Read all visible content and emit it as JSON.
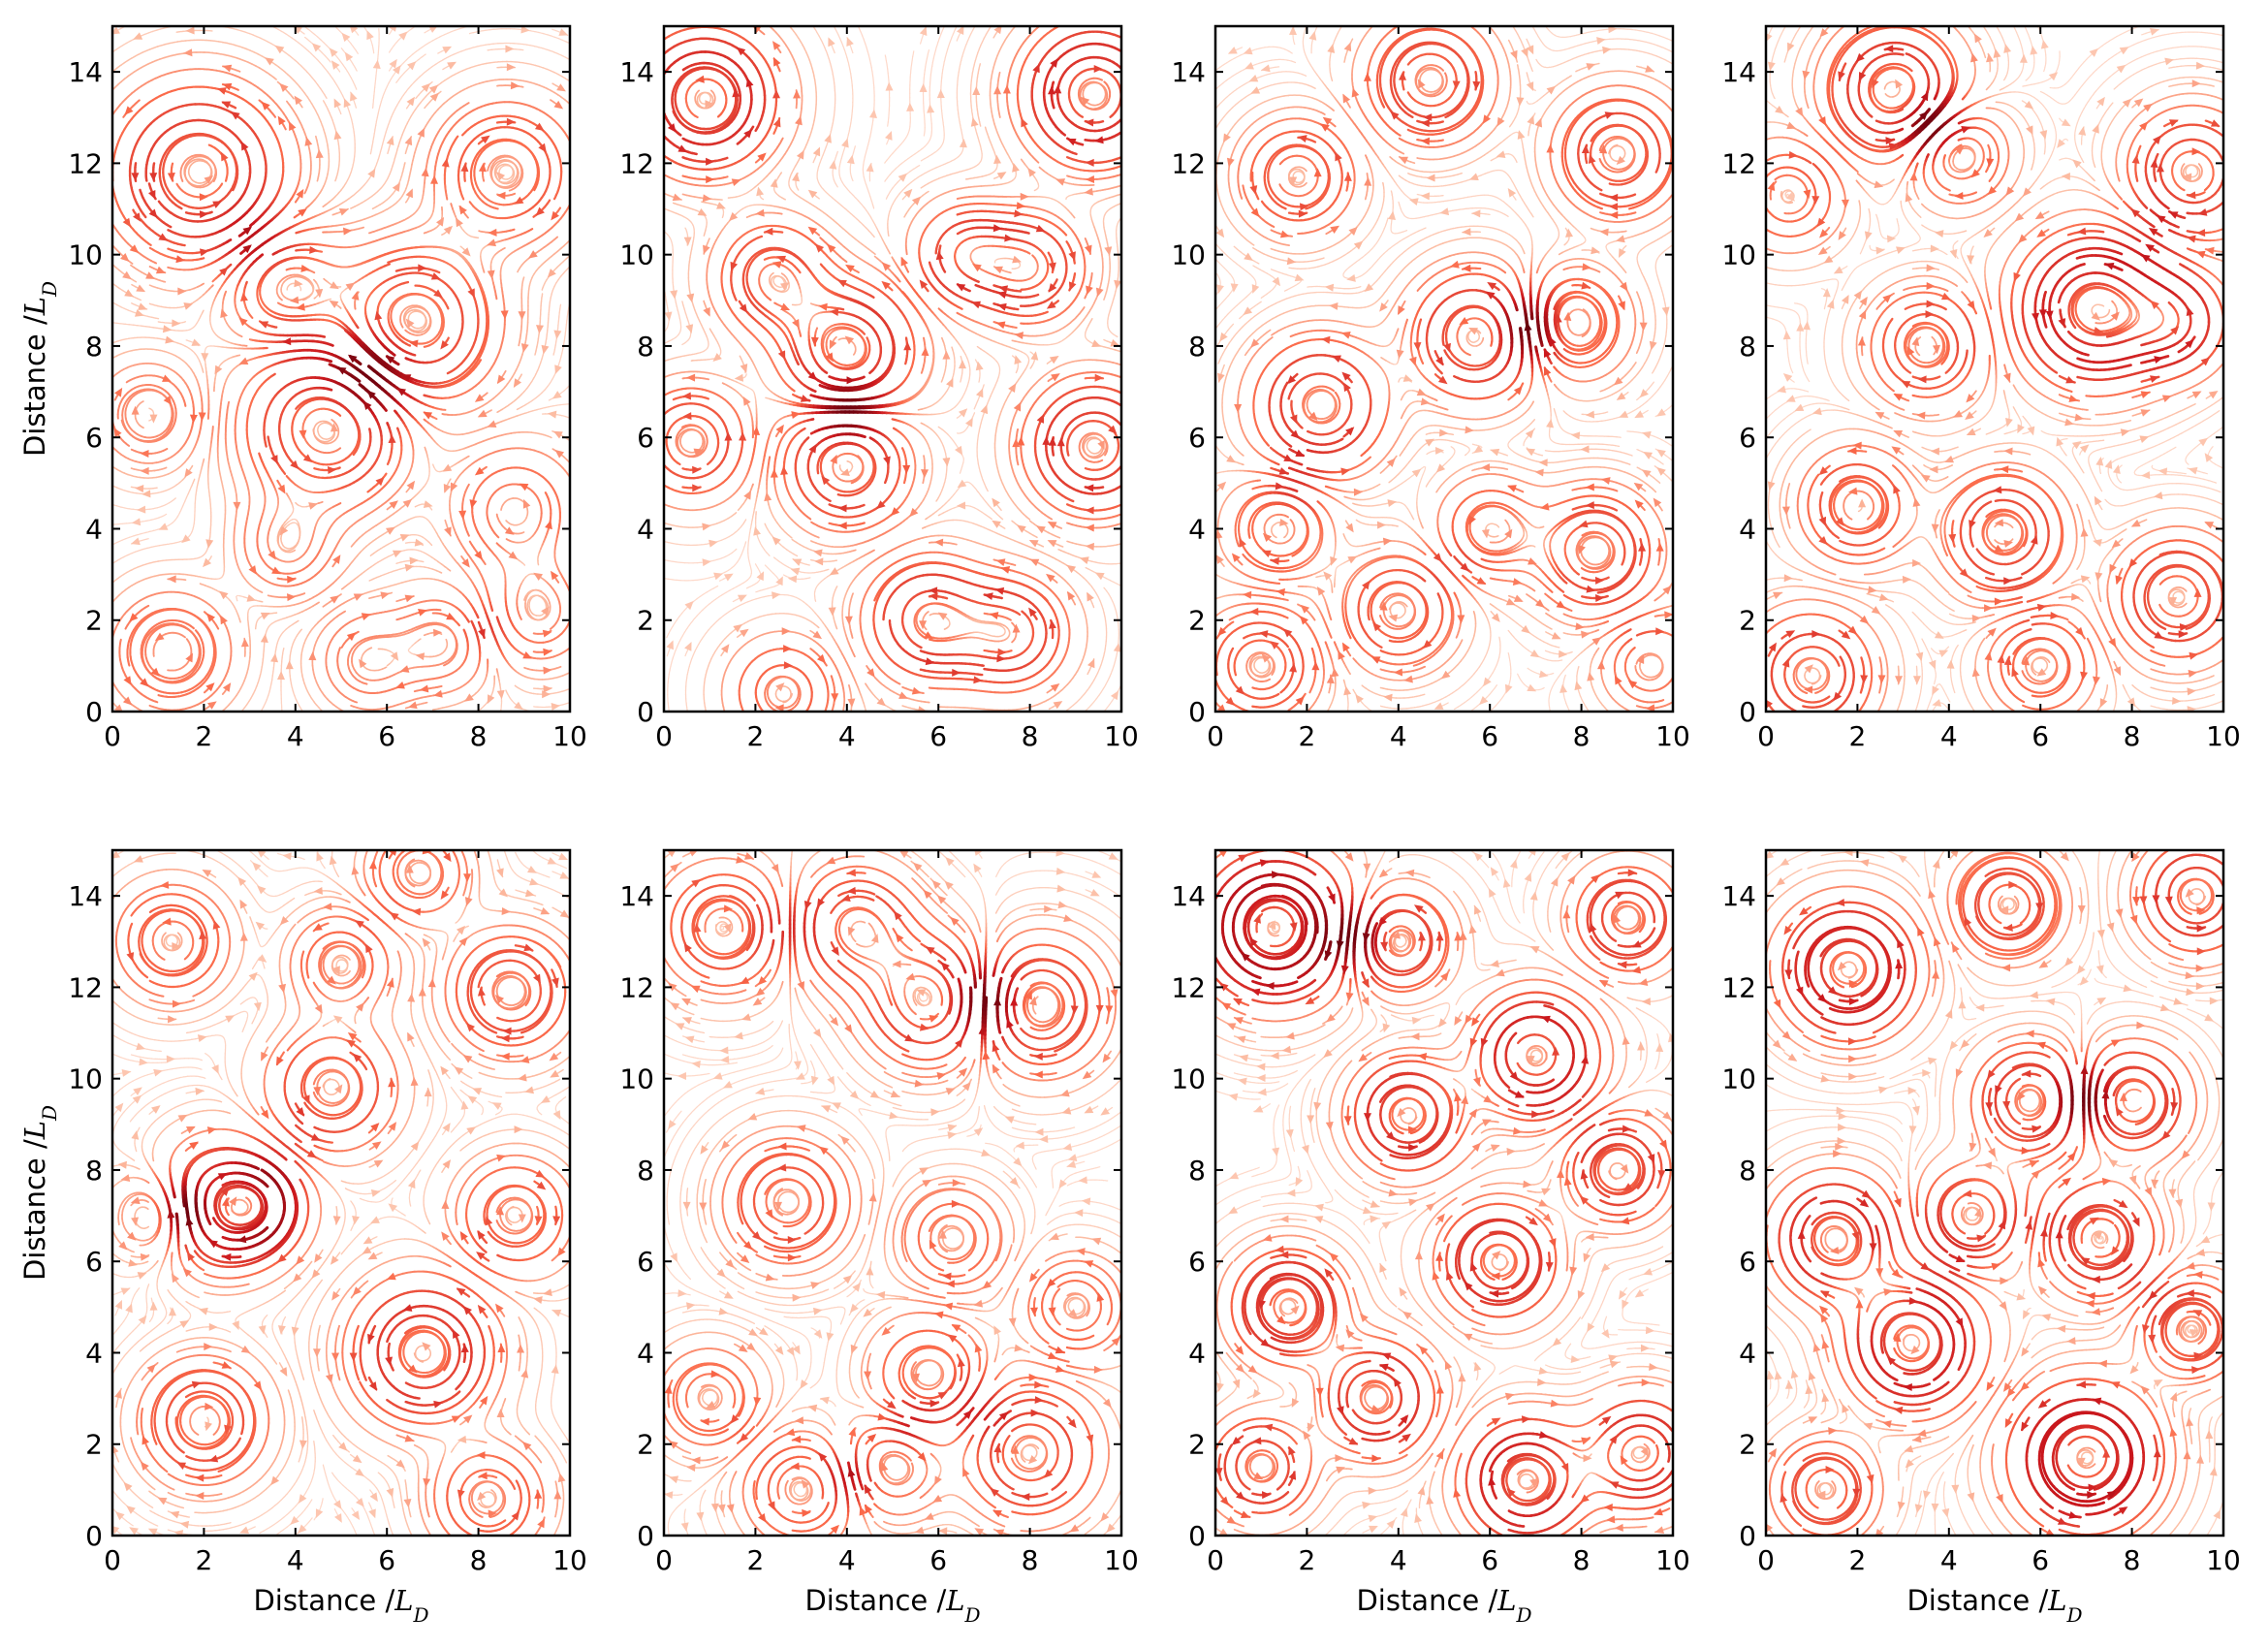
{
  "chart_data": [
    {
      "type": "streamplot",
      "panel": 1,
      "xlim": [
        0,
        10
      ],
      "ylim": [
        0,
        15
      ],
      "xticks": [
        0,
        2,
        4,
        6,
        8,
        10
      ],
      "yticks": [
        0,
        2,
        4,
        6,
        8,
        10,
        12,
        14
      ],
      "xlabel": "",
      "ylabel": "Distance /L_D",
      "colormap": "Reds",
      "vortices": [
        [
          1.9,
          11.8,
          1.7,
          1
        ],
        [
          6.6,
          8.5,
          1.6,
          -1
        ],
        [
          4.7,
          6.2,
          1.6,
          1
        ],
        [
          8.6,
          11.8,
          1.4,
          -1
        ],
        [
          1.3,
          1.3,
          1.2,
          1
        ],
        [
          5.6,
          1.1,
          1.0,
          -1
        ],
        [
          9.3,
          2.2,
          1.1,
          1
        ],
        [
          3.8,
          9.3,
          1.2,
          -1
        ],
        [
          3.8,
          3.6,
          1.0,
          1
        ],
        [
          0.8,
          6.5,
          1.0,
          -1
        ],
        [
          8.8,
          4.4,
          1.2,
          1
        ],
        [
          7.2,
          1.5,
          1.0,
          -1
        ]
      ]
    },
    {
      "type": "streamplot",
      "panel": 2,
      "xlim": [
        0,
        10
      ],
      "ylim": [
        0,
        15
      ],
      "xticks": [
        0,
        2,
        4,
        6,
        8,
        10
      ],
      "yticks": [
        0,
        2,
        4,
        6,
        8,
        10,
        12,
        14
      ],
      "xlabel": "",
      "ylabel": "",
      "colormap": "Reds",
      "vortices": [
        [
          0.9,
          13.4,
          1.4,
          1
        ],
        [
          9.4,
          13.5,
          1.4,
          -1
        ],
        [
          4.0,
          7.9,
          1.3,
          1
        ],
        [
          4.0,
          5.4,
          1.2,
          -1
        ],
        [
          0.6,
          5.9,
          1.1,
          1
        ],
        [
          9.4,
          5.8,
          1.3,
          -1
        ],
        [
          5.8,
          2.0,
          1.2,
          1
        ],
        [
          2.6,
          0.4,
          1.0,
          -1
        ],
        [
          7.6,
          1.7,
          1.1,
          1
        ],
        [
          6.6,
          10.0,
          1.0,
          -1
        ],
        [
          2.4,
          9.5,
          1.1,
          1
        ],
        [
          8.0,
          9.7,
          1.1,
          -1
        ]
      ]
    },
    {
      "type": "streamplot",
      "panel": 3,
      "xlim": [
        0,
        10
      ],
      "ylim": [
        0,
        15
      ],
      "xticks": [
        0,
        2,
        4,
        6,
        8,
        10
      ],
      "yticks": [
        0,
        2,
        4,
        6,
        8,
        10,
        12,
        14
      ],
      "xlabel": "",
      "ylabel": "",
      "colormap": "Reds",
      "vortices": [
        [
          5.7,
          8.2,
          1.3,
          1
        ],
        [
          7.8,
          8.5,
          1.1,
          -1
        ],
        [
          2.3,
          6.7,
          1.3,
          1
        ],
        [
          4.7,
          13.8,
          1.2,
          -1
        ],
        [
          1.0,
          1.0,
          1.1,
          1
        ],
        [
          4.0,
          2.2,
          1.1,
          -1
        ],
        [
          8.3,
          3.5,
          1.2,
          1
        ],
        [
          9.5,
          1.0,
          0.9,
          -1
        ],
        [
          1.8,
          11.7,
          1.1,
          1
        ],
        [
          8.8,
          12.2,
          1.2,
          -1
        ],
        [
          6.0,
          4.0,
          1.0,
          1
        ],
        [
          1.4,
          4.0,
          1.0,
          -1
        ]
      ]
    },
    {
      "type": "streamplot",
      "panel": 4,
      "xlim": [
        0,
        10
      ],
      "ylim": [
        0,
        15
      ],
      "xticks": [
        0,
        2,
        4,
        6,
        8,
        10
      ],
      "yticks": [
        0,
        2,
        4,
        6,
        8,
        10,
        12,
        14
      ],
      "xlabel": "",
      "ylabel": "",
      "colormap": "Reds",
      "vortices": [
        [
          2.8,
          13.6,
          1.3,
          1
        ],
        [
          0.5,
          11.3,
          1.0,
          -1
        ],
        [
          7.2,
          8.8,
          1.5,
          1
        ],
        [
          9.3,
          11.8,
          1.2,
          -1
        ],
        [
          5.2,
          3.9,
          1.2,
          1
        ],
        [
          1.0,
          0.8,
          1.2,
          -1
        ],
        [
          9.0,
          2.5,
          1.2,
          1
        ],
        [
          3.5,
          8.0,
          1.1,
          -1
        ],
        [
          2.0,
          4.5,
          1.1,
          1
        ],
        [
          4.2,
          12.2,
          1.0,
          -1
        ],
        [
          9.0,
          8.5,
          1.0,
          1
        ],
        [
          6.0,
          1.0,
          1.0,
          -1
        ]
      ]
    },
    {
      "type": "streamplot",
      "panel": 5,
      "xlim": [
        0,
        10
      ],
      "ylim": [
        0,
        15
      ],
      "xticks": [
        0,
        2,
        4,
        6,
        8,
        10
      ],
      "yticks": [
        0,
        2,
        4,
        6,
        8,
        10,
        12,
        14
      ],
      "xlabel": "Distance /L_D",
      "ylabel": "Distance /L_D",
      "colormap": "Reds",
      "vortices": [
        [
          4.8,
          9.8,
          1.2,
          1
        ],
        [
          2.4,
          7.2,
          1.3,
          -1
        ],
        [
          6.8,
          4.0,
          1.4,
          1
        ],
        [
          8.7,
          11.9,
          1.2,
          -1
        ],
        [
          1.3,
          13.0,
          1.1,
          1
        ],
        [
          6.7,
          14.5,
          1.0,
          -1
        ],
        [
          1.0,
          7.0,
          0.9,
          1
        ],
        [
          3.2,
          7.2,
          0.9,
          -1
        ],
        [
          8.2,
          0.8,
          1.1,
          1
        ],
        [
          2.0,
          2.5,
          1.2,
          -1
        ],
        [
          5.0,
          12.5,
          1.0,
          1
        ],
        [
          8.8,
          7.0,
          1.1,
          -1
        ]
      ]
    },
    {
      "type": "streamplot",
      "panel": 6,
      "xlim": [
        0,
        10
      ],
      "ylim": [
        0,
        15
      ],
      "xticks": [
        0,
        2,
        4,
        6,
        8,
        10
      ],
      "yticks": [
        0,
        2,
        4,
        6,
        8,
        10,
        12,
        14
      ],
      "xlabel": "Distance /L_D",
      "ylabel": "",
      "colormap": "Reds",
      "vortices": [
        [
          5.8,
          11.7,
          1.3,
          1
        ],
        [
          8.2,
          11.6,
          1.3,
          -1
        ],
        [
          2.7,
          7.3,
          1.2,
          1
        ],
        [
          8.0,
          1.8,
          1.3,
          -1
        ],
        [
          3.0,
          1.0,
          1.1,
          1
        ],
        [
          1.3,
          13.3,
          1.2,
          -1
        ],
        [
          4.2,
          13.3,
          1.2,
          1
        ],
        [
          1.0,
          3.0,
          1.0,
          -1
        ],
        [
          5.8,
          3.5,
          1.1,
          1
        ],
        [
          6.3,
          6.5,
          1.0,
          -1
        ],
        [
          9.0,
          5.0,
          1.0,
          1
        ],
        [
          5.0,
          1.5,
          1.0,
          -1
        ]
      ]
    },
    {
      "type": "streamplot",
      "panel": 7,
      "xlim": [
        0,
        10
      ],
      "ylim": [
        0,
        15
      ],
      "xticks": [
        0,
        2,
        4,
        6,
        8,
        10
      ],
      "yticks": [
        0,
        2,
        4,
        6,
        8,
        10,
        12,
        14
      ],
      "xlabel": "Distance /L_D",
      "ylabel": "",
      "colormap": "Reds",
      "vortices": [
        [
          7.0,
          10.5,
          1.2,
          1
        ],
        [
          1.3,
          13.3,
          1.4,
          -1
        ],
        [
          1.6,
          5.0,
          1.1,
          1
        ],
        [
          6.8,
          1.2,
          1.2,
          -1
        ],
        [
          3.5,
          3.0,
          1.1,
          1
        ],
        [
          9.3,
          1.8,
          1.1,
          -1
        ],
        [
          4.2,
          9.2,
          1.1,
          1
        ],
        [
          8.8,
          8.0,
          1.0,
          -1
        ],
        [
          4.0,
          13.0,
          1.0,
          1
        ],
        [
          6.2,
          6.0,
          1.1,
          -1
        ],
        [
          1.0,
          1.5,
          1.0,
          1
        ],
        [
          9.0,
          13.5,
          1.0,
          -1
        ]
      ]
    },
    {
      "type": "streamplot",
      "panel": 8,
      "xlim": [
        0,
        10
      ],
      "ylim": [
        0,
        15
      ],
      "xticks": [
        0,
        2,
        4,
        6,
        8,
        10
      ],
      "yticks": [
        0,
        2,
        4,
        6,
        8,
        10,
        12,
        14
      ],
      "xlabel": "Distance /L_D",
      "ylabel": "",
      "colormap": "Reds",
      "vortices": [
        [
          1.8,
          12.4,
          1.3,
          1
        ],
        [
          3.2,
          4.2,
          1.3,
          -1
        ],
        [
          7.0,
          1.7,
          1.4,
          1
        ],
        [
          1.5,
          6.5,
          1.2,
          -1
        ],
        [
          5.8,
          9.5,
          1.1,
          1
        ],
        [
          8.0,
          9.5,
          1.1,
          -1
        ],
        [
          9.4,
          14.0,
          1.1,
          1
        ],
        [
          5.3,
          13.8,
          1.0,
          -1
        ],
        [
          9.3,
          4.5,
          1.0,
          1
        ],
        [
          1.3,
          1.0,
          1.0,
          -1
        ],
        [
          4.5,
          7.0,
          1.0,
          1
        ],
        [
          7.3,
          6.5,
          1.1,
          -1
        ]
      ]
    }
  ]
}
